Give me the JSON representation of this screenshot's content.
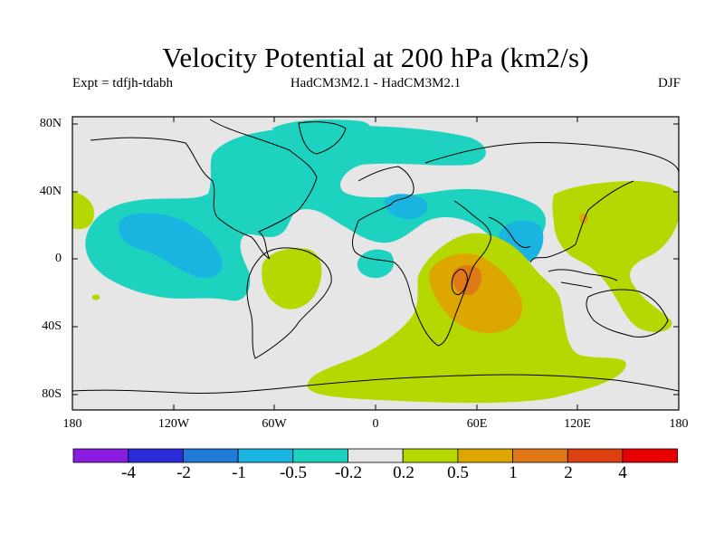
{
  "title": "Velocity Potential at 200 hPa (km2/s)",
  "subtitle_left": "Expt = tdfjh-tdabh",
  "subtitle_center": "HadCM3M2.1 - HadCM3M2.1",
  "subtitle_right": "DJF",
  "latitude_labels": [
    "80N",
    "40N",
    "0",
    "40S",
    "80S"
  ],
  "longitude_labels": [
    "180",
    "120W",
    "60W",
    "0",
    "60E",
    "120E",
    "180"
  ],
  "colorbar": {
    "colors": [
      "#8a1be0",
      "#2a2ad8",
      "#1f7ad8",
      "#1ab4e0",
      "#1ed2c0",
      "#e6e6e6",
      "#b4d800",
      "#dca800",
      "#e07818",
      "#dc4010",
      "#e80000"
    ],
    "labels": [
      "-4",
      "-2",
      "-1",
      "-0.5",
      "-0.2",
      "0.2",
      "0.5",
      "1",
      "2",
      "4"
    ]
  },
  "field_colors": {
    "background": "#e6e6e6",
    "neg_0_2": "#1ed2c0",
    "neg_0_5": "#1ab4e0",
    "pos_0_2": "#b4d800",
    "pos_0_5": "#dca800",
    "pos_1": "#e07818"
  }
}
